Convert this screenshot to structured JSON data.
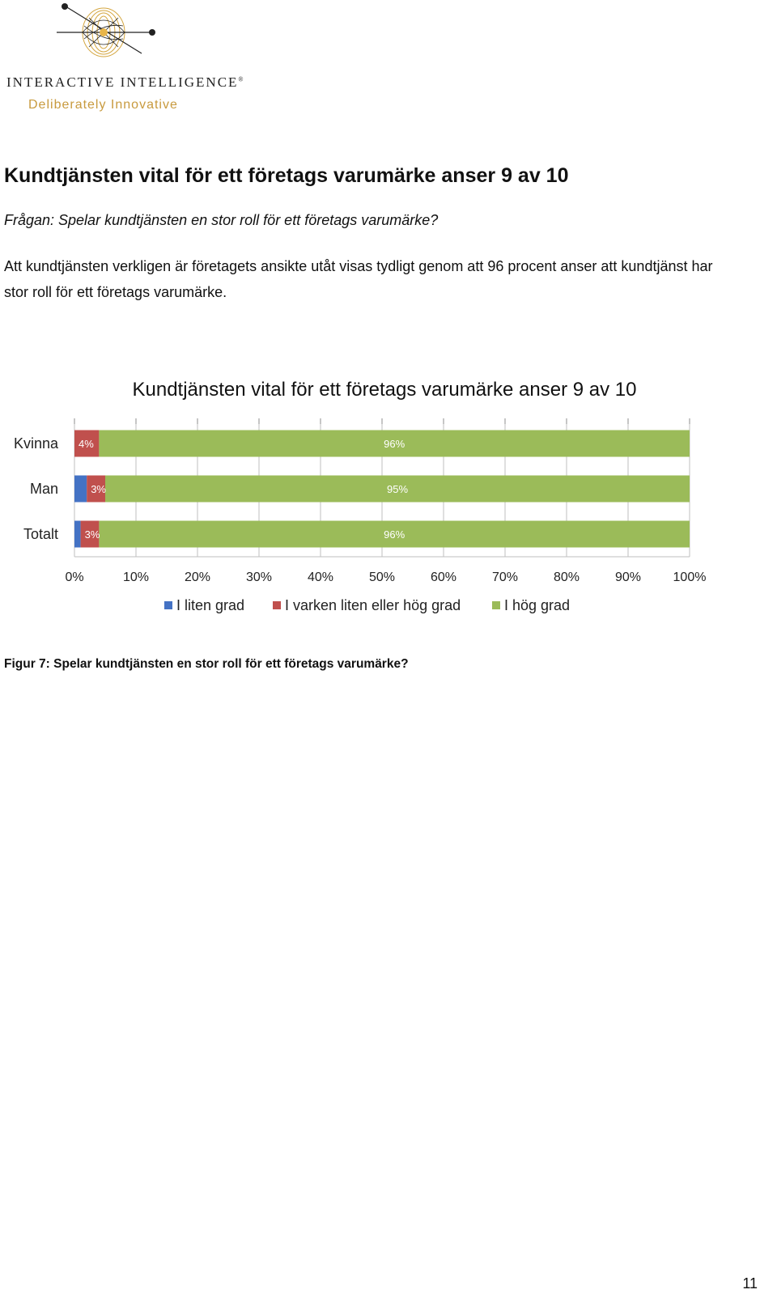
{
  "header": {
    "logo_name": "INTERACTIVE INTELLIGENCE",
    "logo_trademark": "®",
    "logo_tagline": "Deliberately Innovative"
  },
  "section": {
    "heading": "Kundtjänsten vital för ett företags varumärke anser 9 av 10",
    "question": "Frågan: Spelar kundtjänsten en stor roll för ett företags varumärke?",
    "paragraph": "Att kundtjänsten verkligen är företagets ansikte utåt visas tydligt genom att 96 procent anser att kundtjänst har stor roll för ett företags varumärke."
  },
  "chart_data": {
    "type": "bar",
    "orientation": "horizontal",
    "stacked": true,
    "title": "Kundtjänsten vital för ett företags varumärke anser 9 av 10",
    "categories": [
      "Kvinna",
      "Man",
      "Totalt"
    ],
    "series": [
      {
        "name": "I liten grad",
        "values": [
          0,
          2,
          1
        ],
        "color": "#4472c4",
        "labels": [
          "",
          "",
          ""
        ]
      },
      {
        "name": "I varken liten eller hög grad",
        "values": [
          4,
          3,
          3
        ],
        "color": "#c0504d",
        "labels": [
          "4%",
          "3%",
          "3%"
        ]
      },
      {
        "name": "I hög grad",
        "values": [
          96,
          95,
          96
        ],
        "color": "#9bbb59",
        "labels": [
          "96%",
          "95%",
          "96%"
        ]
      }
    ],
    "xlim": [
      0,
      100
    ],
    "xticks": [
      "0%",
      "10%",
      "20%",
      "30%",
      "40%",
      "50%",
      "60%",
      "70%",
      "80%",
      "90%",
      "100%"
    ],
    "grid": true,
    "legend_position": "bottom"
  },
  "figure": {
    "caption": "Figur 7: Spelar kundtjänsten en stor roll för ett företags varumärke?"
  },
  "page": {
    "number": "11"
  }
}
